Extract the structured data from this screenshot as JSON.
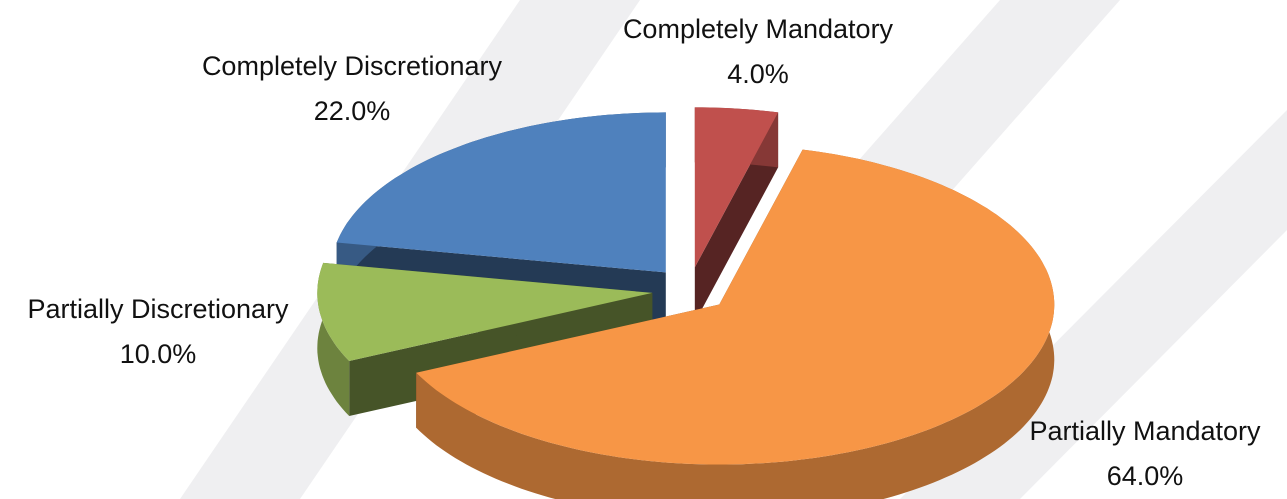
{
  "chart_data": {
    "type": "pie3d",
    "categories": [
      "Completely Mandatory",
      "Partially Mandatory",
      "Partially Discretionary",
      "Completely Discretionary"
    ],
    "values": [
      4,
      64,
      10,
      22
    ],
    "value_labels": [
      "4.0%",
      "64.0%",
      "10.0%",
      "22.0%"
    ],
    "colors": [
      "#c0504d",
      "#f79646",
      "#9bbb59",
      "#4f81bd"
    ]
  }
}
